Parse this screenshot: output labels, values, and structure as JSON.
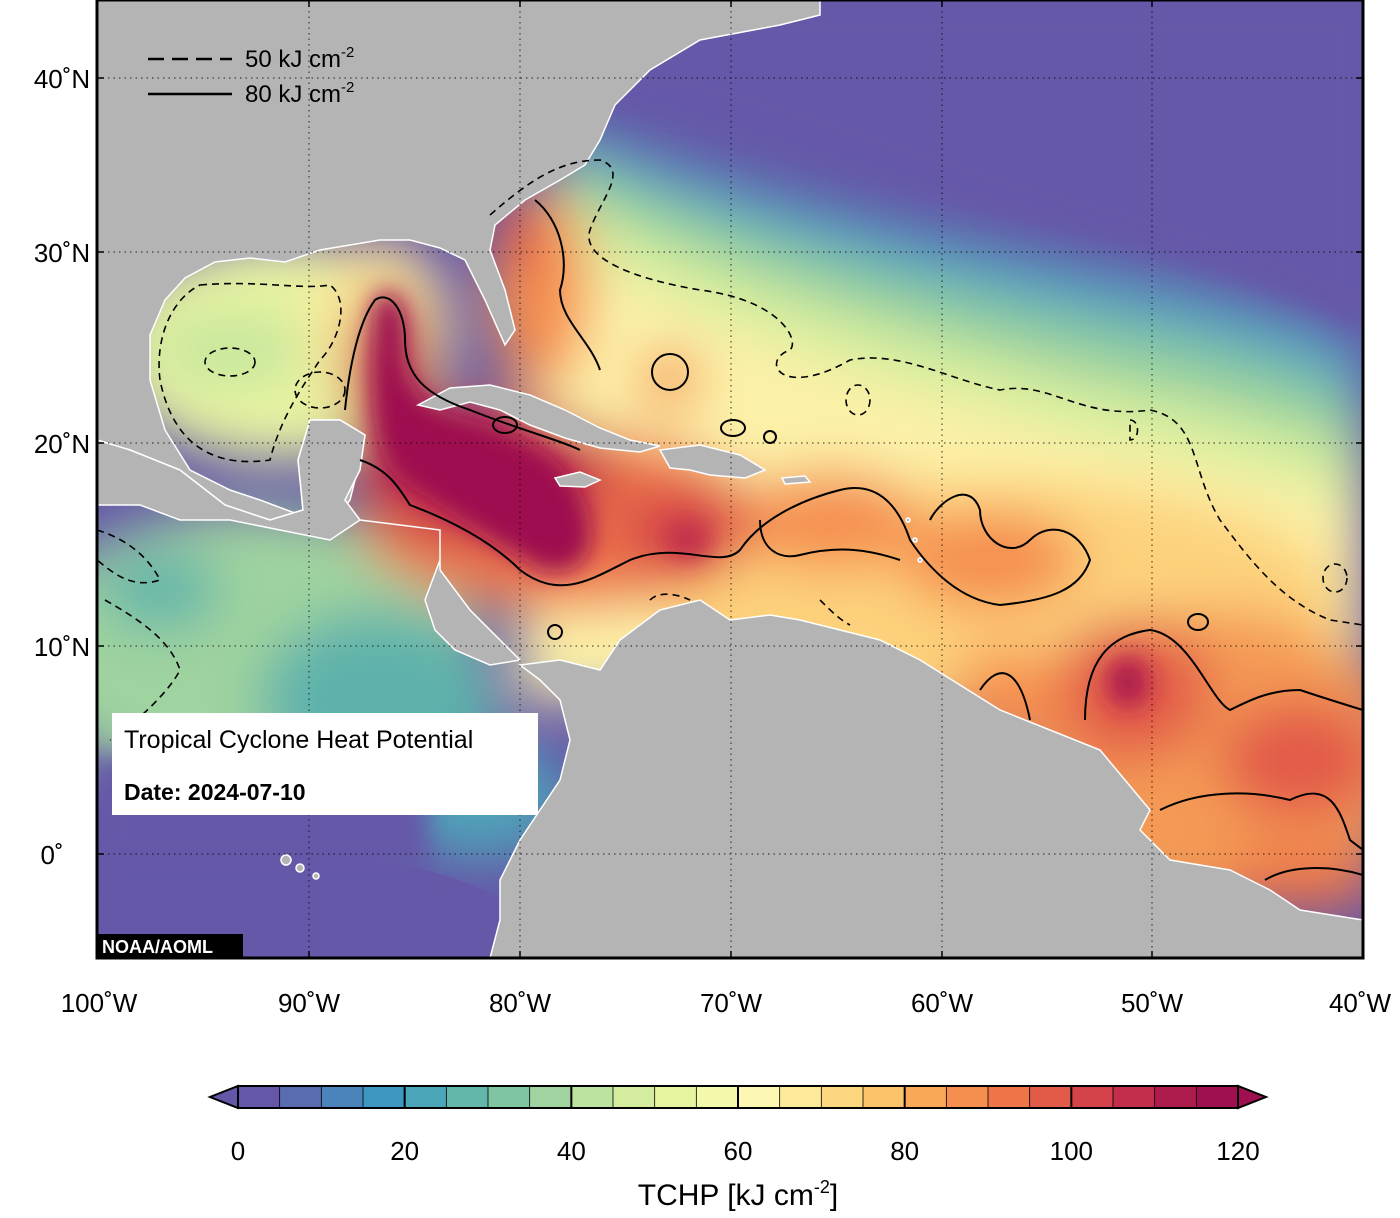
{
  "map": {
    "credit": "NOAA/AOML",
    "info_box": {
      "title": "Tropical Cyclone Heat Potential",
      "date": "Date: 2024-07-10"
    },
    "legend": {
      "dashed_label": "50 kJ cm",
      "solid_label": "80 kJ cm",
      "superscript": "-2"
    },
    "lat_ticks": [
      {
        "value": 40,
        "label": "40˚N"
      },
      {
        "value": 30,
        "label": "30˚N"
      },
      {
        "value": 20,
        "label": "20˚N"
      },
      {
        "value": 10,
        "label": "10˚N"
      },
      {
        "value": 0,
        "label": "0˚"
      }
    ],
    "lon_ticks": [
      {
        "value": -100,
        "label": "100˚W"
      },
      {
        "value": -90,
        "label": "90˚W"
      },
      {
        "value": -80,
        "label": "80˚W"
      },
      {
        "value": -70,
        "label": "70˚W"
      },
      {
        "value": -60,
        "label": "60˚W"
      },
      {
        "value": -50,
        "label": "50˚W"
      },
      {
        "value": -40,
        "label": "40˚W"
      }
    ],
    "extent": {
      "lon": [
        -100,
        -40
      ],
      "lat": [
        -5,
        45
      ]
    },
    "colors": {
      "land": "#b4b4b4",
      "ocean_cold": "#6558a8",
      "coast": "#ffffff"
    }
  },
  "colorbar": {
    "title": "TCHP [kJ cm",
    "title_sup": "-2",
    "title_end": "]",
    "min": 0,
    "max": 120,
    "step": 5,
    "tick_values": [
      0,
      20,
      40,
      60,
      80,
      100,
      120
    ],
    "tick_labels": [
      "0",
      "20",
      "40",
      "60",
      "80",
      "100",
      "120"
    ],
    "colors": [
      "#6557a7",
      "#5a6cb0",
      "#4a84bb",
      "#3d97c0",
      "#4aa6b8",
      "#62b6aa",
      "#7fc5a2",
      "#a0d39f",
      "#bce3a0",
      "#d3ec9e",
      "#e6f39f",
      "#f3f8aa",
      "#fcf7b3",
      "#fde99a",
      "#fdd780",
      "#fcc36a",
      "#f9a85a",
      "#f58f50",
      "#ee744a",
      "#e25a48",
      "#d44349",
      "#c22e4c",
      "#ae1c4e",
      "#9e1050"
    ],
    "over_color": "#9e1050",
    "under_color": "#6557a7"
  }
}
